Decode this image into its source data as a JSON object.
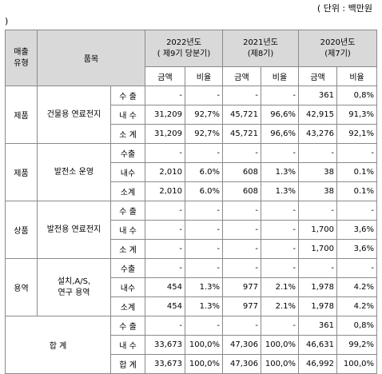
{
  "unit_note": "( 단위 : 백만원",
  "paren_close": ")",
  "header": {
    "type": "매출\n유형",
    "item": "품목",
    "years": [
      {
        "label": "2022년도\n( 제9기 당분기)"
      },
      {
        "label": "2021년도\n(제8기)"
      },
      {
        "label": "2020년도\n(제7기)"
      }
    ],
    "amount": "금액",
    "ratio": "비율"
  },
  "groups": [
    {
      "type": "제품",
      "item": "건물용 연료전지",
      "rows": [
        {
          "label": "수 출",
          "v": [
            "-",
            "-",
            "-",
            "-",
            "361",
            "0,8%"
          ]
        },
        {
          "label": "내 수",
          "v": [
            "31,209",
            "92,7%",
            "45,721",
            "96,6%",
            "42,915",
            "91,3%"
          ]
        },
        {
          "label": "소 계",
          "v": [
            "31,209",
            "92,7%",
            "45,721",
            "96,6%",
            "43,276",
            "92,1%"
          ]
        }
      ]
    },
    {
      "type": "제품",
      "item": "발전소 운영",
      "rows": [
        {
          "label": "수출",
          "v": [
            "-",
            "-",
            "-",
            "-",
            "-",
            "-"
          ]
        },
        {
          "label": "내수",
          "v": [
            "2,010",
            "6.0%",
            "608",
            "1.3%",
            "38",
            "0.1%"
          ]
        },
        {
          "label": "소계",
          "v": [
            "2,010",
            "6.0%",
            "608",
            "1.3%",
            "38",
            "0.1%"
          ]
        }
      ]
    },
    {
      "type": "상품",
      "item": "발전용 연료전지",
      "rows": [
        {
          "label": "수 출",
          "v": [
            "-",
            "-",
            "-",
            "-",
            "-",
            "-"
          ]
        },
        {
          "label": "내 수",
          "v": [
            "-",
            "-",
            "-",
            "-",
            "1,700",
            "3,6%"
          ]
        },
        {
          "label": "소 계",
          "v": [
            "-",
            "-",
            "-",
            "-",
            "1,700",
            "3,6%"
          ]
        }
      ]
    },
    {
      "type": "용역",
      "item": "설치,A/S,\n연구 용역",
      "rows": [
        {
          "label": "수출",
          "v": [
            "-",
            "-",
            "-",
            "-",
            "-",
            "-"
          ]
        },
        {
          "label": "내수",
          "v": [
            "454",
            "1.3%",
            "977",
            "2.1%",
            "1,978",
            "4.2%"
          ]
        },
        {
          "label": "소계",
          "v": [
            "454",
            "1.3%",
            "977",
            "2.1%",
            "1,978",
            "4.2%"
          ]
        }
      ]
    },
    {
      "type": "",
      "item": "합 계",
      "merged": true,
      "rows": [
        {
          "label": "수 출",
          "v": [
            "-",
            "-",
            "-",
            "-",
            "361",
            "0,8%"
          ]
        },
        {
          "label": "내 수",
          "v": [
            "33,673",
            "100,0%",
            "47,306",
            "100,0%",
            "46,631",
            "99,2%"
          ]
        },
        {
          "label": "합 계",
          "v": [
            "33,673",
            "100,0%",
            "47,306",
            "100,0%",
            "46,992",
            "100,0%"
          ]
        }
      ]
    }
  ]
}
